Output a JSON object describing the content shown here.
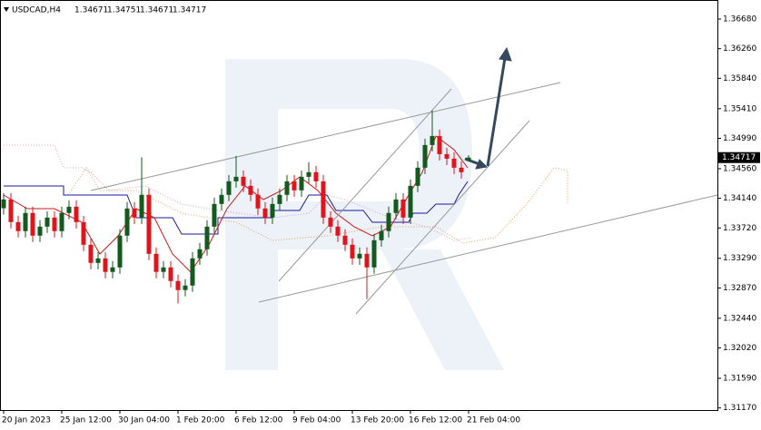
{
  "chart_data": {
    "type": "candlestick",
    "title": "USDCAD,H4",
    "categories": [
      "20 Jan 2023",
      null,
      null,
      null,
      null,
      null,
      null,
      null,
      "25 Jan 12:00",
      null,
      null,
      null,
      null,
      null,
      null,
      null,
      "30 Jan 04:00",
      null,
      null,
      null,
      null,
      null,
      null,
      null,
      "1 Feb 20:00",
      null,
      null,
      null,
      null,
      null,
      null,
      null,
      "6 Feb 12:00",
      null,
      null,
      null,
      null,
      null,
      null,
      null,
      "9 Feb 04:00",
      null,
      null,
      null,
      null,
      null,
      null,
      null,
      "13 Feb 20:00",
      null,
      null,
      null,
      null,
      null,
      null,
      null,
      "16 Feb 12:00",
      null,
      null,
      null,
      null,
      null,
      null,
      null,
      "21 Feb 04:00"
    ],
    "open": [
      1.34,
      1.34124,
      1.33803,
      1.33675,
      1.33932,
      1.33611,
      1.33739,
      1.33867,
      1.33675,
      1.33932,
      1.34021,
      1.33803,
      1.33482,
      1.33225,
      1.33289,
      1.33097,
      1.33161,
      1.33611,
      1.33996,
      1.33867,
      1.34189,
      1.33354,
      1.33097,
      1.33161,
      1.32968,
      1.3284,
      1.32904,
      1.33289,
      1.33418,
      1.33739,
      1.3406,
      1.34189,
      1.34381,
      1.34445,
      1.34317,
      1.34189,
      1.33996,
      1.33867,
      1.3406,
      1.34189,
      1.34381,
      1.34253,
      1.34445,
      1.3451,
      1.34381,
      1.33867,
      1.33739,
      1.33611,
      1.33482,
      1.33289,
      1.33354,
      1.33161,
      1.33546,
      1.33675,
      1.33932,
      1.34124,
      1.33867,
      1.34317,
      1.34574,
      1.34895,
      1.35023,
      1.34766,
      1.34702,
      1.34574,
      1.34671
    ],
    "high": [
      1.34214,
      1.34214,
      1.33893,
      1.34022,
      1.34022,
      1.33829,
      1.33957,
      1.33957,
      1.34022,
      1.34111,
      1.34111,
      1.33893,
      1.33572,
      1.33379,
      1.33379,
      1.33251,
      1.33701,
      1.34086,
      1.34086,
      1.3472,
      1.34279,
      1.33444,
      1.33251,
      1.33251,
      1.33058,
      1.32994,
      1.33379,
      1.33508,
      1.33829,
      1.3415,
      1.34279,
      1.34471,
      1.34741,
      1.34535,
      1.34407,
      1.34279,
      1.34086,
      1.3415,
      1.34279,
      1.34471,
      1.34471,
      1.34535,
      1.3465,
      1.346,
      1.34471,
      1.33957,
      1.33829,
      1.33701,
      1.33572,
      1.33444,
      1.33444,
      1.33636,
      1.33765,
      1.34022,
      1.34214,
      1.34214,
      1.34407,
      1.34664,
      1.34985,
      1.35383,
      1.35113,
      1.34856,
      1.34792,
      1.34664,
      1.34751
    ],
    "low": [
      1.3391,
      1.33713,
      1.33585,
      1.33585,
      1.33521,
      1.33521,
      1.33649,
      1.33585,
      1.33585,
      1.33842,
      1.33713,
      1.33392,
      1.33135,
      1.33135,
      1.33007,
      1.33007,
      1.33071,
      1.33521,
      1.33777,
      1.33777,
      1.33264,
      1.33007,
      1.33007,
      1.32878,
      1.3265,
      1.3275,
      1.32814,
      1.33199,
      1.33328,
      1.33649,
      1.3397,
      1.34099,
      1.34291,
      1.34227,
      1.34099,
      1.33906,
      1.33777,
      1.33777,
      1.3397,
      1.34099,
      1.34163,
      1.34163,
      1.34355,
      1.34291,
      1.33777,
      1.33649,
      1.33521,
      1.33392,
      1.33199,
      1.33199,
      1.32712,
      1.33071,
      1.33456,
      1.33585,
      1.33842,
      1.33777,
      1.33777,
      1.34227,
      1.34484,
      1.34805,
      1.34676,
      1.34612,
      1.34484,
      1.3442,
      1.34671
    ],
    "close": [
      1.34124,
      1.33803,
      1.33675,
      1.33932,
      1.33611,
      1.33739,
      1.33867,
      1.33675,
      1.33932,
      1.34021,
      1.33803,
      1.33482,
      1.33225,
      1.33289,
      1.33097,
      1.33161,
      1.33611,
      1.33996,
      1.33867,
      1.34189,
      1.33354,
      1.33097,
      1.33161,
      1.32968,
      1.3284,
      1.32904,
      1.33289,
      1.33418,
      1.33739,
      1.3406,
      1.34189,
      1.34381,
      1.34445,
      1.34317,
      1.34189,
      1.33996,
      1.33867,
      1.3406,
      1.34189,
      1.34381,
      1.34253,
      1.34445,
      1.3451,
      1.34381,
      1.33867,
      1.33739,
      1.33611,
      1.33482,
      1.33289,
      1.33354,
      1.33161,
      1.33546,
      1.33675,
      1.33932,
      1.34124,
      1.33867,
      1.34317,
      1.34574,
      1.34895,
      1.35023,
      1.34766,
      1.34702,
      1.34574,
      1.3451,
      1.34717
    ],
    "up_color": "#14591e",
    "down_color": "#e0141a",
    "ylim": [
      1.3114,
      1.3695
    ],
    "yticks": [
      {
        "value": 1.3668,
        "label": "1.36680"
      },
      {
        "value": 1.3626,
        "label": "1.36260"
      },
      {
        "value": 1.3584,
        "label": "1.35840"
      },
      {
        "value": 1.3541,
        "label": "1.35410"
      },
      {
        "value": 1.3499,
        "label": "1.34990"
      },
      {
        "value": 1.3456,
        "label": "1.34560"
      },
      {
        "value": 1.3414,
        "label": "1.34140"
      },
      {
        "value": 1.3372,
        "label": "1.33720"
      },
      {
        "value": 1.3329,
        "label": "1.33290"
      },
      {
        "value": 1.3287,
        "label": "1.32870"
      },
      {
        "value": 1.3244,
        "label": "1.32440"
      },
      {
        "value": 1.3202,
        "label": "1.32020"
      },
      {
        "value": 1.3159,
        "label": "1.31590"
      },
      {
        "value": 1.3117,
        "label": "1.31170"
      }
    ],
    "grid": false
  }
}
